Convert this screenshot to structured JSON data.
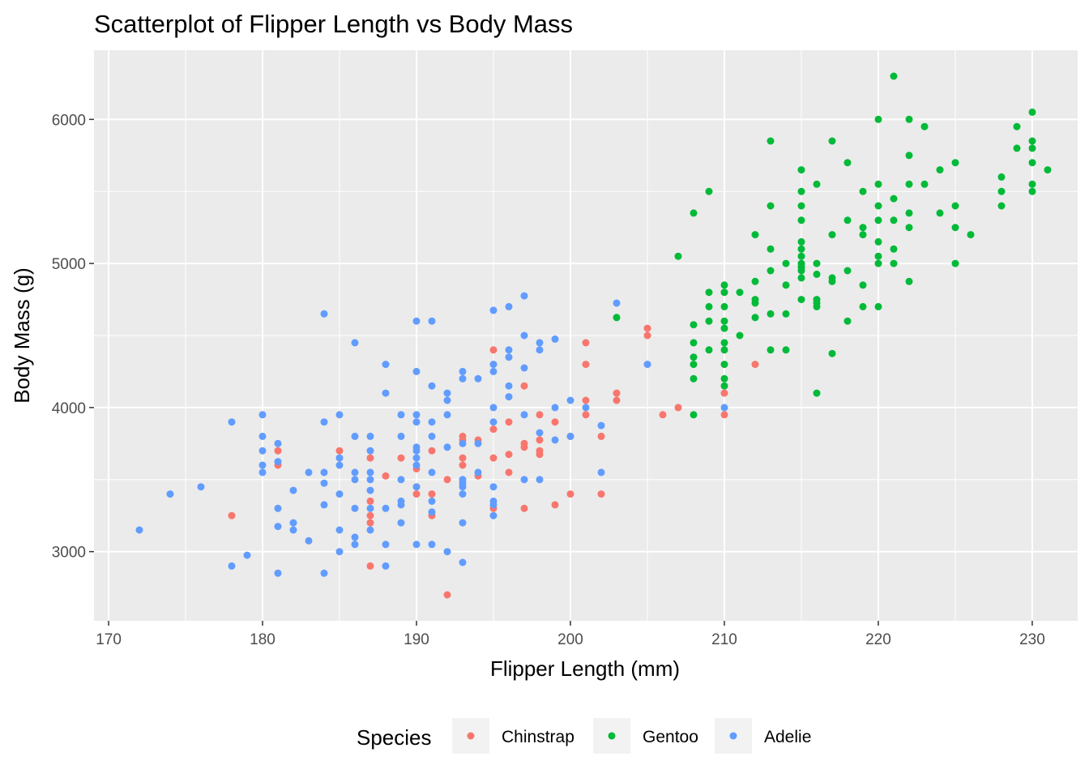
{
  "chart_data": {
    "type": "scatter",
    "title": "Scatterplot of Flipper Length vs Body Mass",
    "xlabel": "Flipper Length (mm)",
    "ylabel": "Body Mass (g)",
    "xlim": [
      169.05,
      232.95
    ],
    "ylim": [
      2520,
      6480
    ],
    "x_ticks": [
      170,
      180,
      190,
      200,
      210,
      220,
      230
    ],
    "y_ticks": [
      3000,
      4000,
      5000,
      6000
    ],
    "x_tick_labels": [
      "170",
      "180",
      "190",
      "200",
      "210",
      "220",
      "230"
    ],
    "y_tick_labels": [
      "3000",
      "4000",
      "5000",
      "6000"
    ],
    "grid": true,
    "legend_position": "bottom",
    "legend_title": "Species",
    "series": [
      {
        "name": "Chinstrap",
        "color": "#F8766D",
        "points": [
          [
            178,
            3250
          ],
          [
            181,
            3700
          ],
          [
            181,
            3600
          ],
          [
            185,
            3700
          ],
          [
            187,
            3650
          ],
          [
            187,
            3350
          ],
          [
            187,
            3250
          ],
          [
            187,
            3200
          ],
          [
            187,
            2900
          ],
          [
            188,
            3525
          ],
          [
            189,
            3650
          ],
          [
            190,
            3575
          ],
          [
            190,
            3450
          ],
          [
            190,
            3400
          ],
          [
            191,
            3700
          ],
          [
            191,
            3400
          ],
          [
            191,
            3250
          ],
          [
            192,
            3500
          ],
          [
            192,
            2700
          ],
          [
            193,
            3800
          ],
          [
            193,
            3775
          ],
          [
            193,
            3650
          ],
          [
            193,
            3600
          ],
          [
            194,
            3775
          ],
          [
            194,
            3525
          ],
          [
            195,
            4400
          ],
          [
            195,
            3850
          ],
          [
            195,
            3650
          ],
          [
            195,
            3300
          ],
          [
            196,
            3900
          ],
          [
            196,
            3675
          ],
          [
            196,
            3550
          ],
          [
            197,
            4150
          ],
          [
            197,
            3750
          ],
          [
            197,
            3725
          ],
          [
            197,
            3300
          ],
          [
            198,
            3950
          ],
          [
            198,
            3775
          ],
          [
            198,
            3700
          ],
          [
            198,
            3675
          ],
          [
            199,
            3900
          ],
          [
            199,
            3325
          ],
          [
            200,
            3800
          ],
          [
            200,
            3400
          ],
          [
            201,
            4450
          ],
          [
            201,
            4300
          ],
          [
            201,
            4050
          ],
          [
            201,
            3950
          ],
          [
            202,
            3800
          ],
          [
            202,
            3400
          ],
          [
            203,
            4100
          ],
          [
            203,
            4050
          ],
          [
            205,
            4550
          ],
          [
            205,
            4500
          ],
          [
            206,
            3950
          ],
          [
            207,
            4000
          ],
          [
            210,
            4800
          ],
          [
            210,
            4100
          ],
          [
            210,
            3950
          ],
          [
            212,
            4300
          ]
        ]
      },
      {
        "name": "Gentoo",
        "color": "#00BA38",
        "points": [
          [
            203,
            4625
          ],
          [
            207,
            5050
          ],
          [
            208,
            5350
          ],
          [
            208,
            4575
          ],
          [
            208,
            4450
          ],
          [
            208,
            4350
          ],
          [
            208,
            4300
          ],
          [
            208,
            4200
          ],
          [
            208,
            3950
          ],
          [
            209,
            5500
          ],
          [
            209,
            4800
          ],
          [
            209,
            4700
          ],
          [
            209,
            4600
          ],
          [
            209,
            4400
          ],
          [
            210,
            4850
          ],
          [
            210,
            4800
          ],
          [
            210,
            4700
          ],
          [
            210,
            4600
          ],
          [
            210,
            4550
          ],
          [
            210,
            4450
          ],
          [
            210,
            4400
          ],
          [
            210,
            4300
          ],
          [
            210,
            4200
          ],
          [
            210,
            4150
          ],
          [
            211,
            4800
          ],
          [
            211,
            4500
          ],
          [
            212,
            5200
          ],
          [
            212,
            4875
          ],
          [
            212,
            4750
          ],
          [
            212,
            4725
          ],
          [
            212,
            4625
          ],
          [
            213,
            5850
          ],
          [
            213,
            5400
          ],
          [
            213,
            5100
          ],
          [
            213,
            4950
          ],
          [
            213,
            4650
          ],
          [
            213,
            4400
          ],
          [
            214,
            5000
          ],
          [
            214,
            4850
          ],
          [
            214,
            4650
          ],
          [
            214,
            4400
          ],
          [
            215,
            5650
          ],
          [
            215,
            5500
          ],
          [
            215,
            5400
          ],
          [
            215,
            5300
          ],
          [
            215,
            5150
          ],
          [
            215,
            5100
          ],
          [
            215,
            5050
          ],
          [
            215,
            5000
          ],
          [
            215,
            4975
          ],
          [
            215,
            4950
          ],
          [
            215,
            4900
          ],
          [
            215,
            4750
          ],
          [
            216,
            5550
          ],
          [
            216,
            5000
          ],
          [
            216,
            4925
          ],
          [
            216,
            4750
          ],
          [
            216,
            4725
          ],
          [
            216,
            4700
          ],
          [
            216,
            4100
          ],
          [
            217,
            5850
          ],
          [
            217,
            5200
          ],
          [
            217,
            4900
          ],
          [
            217,
            4875
          ],
          [
            217,
            4375
          ],
          [
            218,
            5700
          ],
          [
            218,
            5300
          ],
          [
            218,
            4950
          ],
          [
            218,
            4600
          ],
          [
            219,
            5500
          ],
          [
            219,
            5250
          ],
          [
            219,
            5200
          ],
          [
            219,
            4850
          ],
          [
            219,
            4700
          ],
          [
            220,
            6000
          ],
          [
            220,
            5550
          ],
          [
            220,
            5400
          ],
          [
            220,
            5300
          ],
          [
            220,
            5150
          ],
          [
            220,
            5050
          ],
          [
            220,
            5000
          ],
          [
            220,
            4700
          ],
          [
            221,
            6300
          ],
          [
            221,
            5450
          ],
          [
            221,
            5300
          ],
          [
            221,
            5100
          ],
          [
            221,
            5000
          ],
          [
            222,
            6000
          ],
          [
            222,
            5750
          ],
          [
            222,
            5550
          ],
          [
            222,
            5350
          ],
          [
            222,
            5250
          ],
          [
            222,
            4875
          ],
          [
            223,
            5950
          ],
          [
            223,
            5550
          ],
          [
            224,
            5650
          ],
          [
            224,
            5350
          ],
          [
            225,
            5700
          ],
          [
            225,
            5400
          ],
          [
            225,
            5250
          ],
          [
            225,
            5000
          ],
          [
            226,
            5200
          ],
          [
            228,
            5600
          ],
          [
            228,
            5500
          ],
          [
            228,
            5400
          ],
          [
            229,
            5950
          ],
          [
            229,
            5800
          ],
          [
            230,
            6050
          ],
          [
            230,
            5850
          ],
          [
            230,
            5800
          ],
          [
            230,
            5700
          ],
          [
            230,
            5550
          ],
          [
            230,
            5500
          ],
          [
            231,
            5650
          ]
        ]
      },
      {
        "name": "Adelie",
        "color": "#619CFF",
        "points": [
          [
            172,
            3150
          ],
          [
            174,
            3400
          ],
          [
            176,
            3450
          ],
          [
            178,
            3900
          ],
          [
            178,
            2900
          ],
          [
            179,
            2975
          ],
          [
            180,
            3950
          ],
          [
            180,
            3800
          ],
          [
            180,
            3700
          ],
          [
            180,
            3600
          ],
          [
            180,
            3550
          ],
          [
            181,
            3750
          ],
          [
            181,
            3625
          ],
          [
            181,
            3300
          ],
          [
            181,
            3175
          ],
          [
            181,
            2850
          ],
          [
            182,
            3425
          ],
          [
            182,
            3200
          ],
          [
            182,
            3150
          ],
          [
            183,
            3550
          ],
          [
            183,
            3075
          ],
          [
            184,
            4650
          ],
          [
            184,
            3900
          ],
          [
            184,
            3550
          ],
          [
            184,
            3475
          ],
          [
            184,
            3325
          ],
          [
            184,
            2850
          ],
          [
            185,
            3950
          ],
          [
            185,
            3650
          ],
          [
            185,
            3600
          ],
          [
            185,
            3400
          ],
          [
            185,
            3150
          ],
          [
            185,
            3000
          ],
          [
            186,
            4450
          ],
          [
            186,
            3800
          ],
          [
            186,
            3550
          ],
          [
            186,
            3500
          ],
          [
            186,
            3300
          ],
          [
            186,
            3100
          ],
          [
            186,
            3050
          ],
          [
            187,
            3800
          ],
          [
            187,
            3700
          ],
          [
            187,
            3550
          ],
          [
            187,
            3500
          ],
          [
            187,
            3425
          ],
          [
            187,
            3300
          ],
          [
            187,
            3150
          ],
          [
            188,
            4300
          ],
          [
            188,
            4100
          ],
          [
            188,
            3300
          ],
          [
            188,
            3050
          ],
          [
            188,
            2900
          ],
          [
            189,
            3950
          ],
          [
            189,
            3800
          ],
          [
            189,
            3500
          ],
          [
            189,
            3350
          ],
          [
            189,
            3325
          ],
          [
            189,
            3200
          ],
          [
            190,
            4600
          ],
          [
            190,
            4250
          ],
          [
            190,
            3950
          ],
          [
            190,
            3900
          ],
          [
            190,
            3725
          ],
          [
            190,
            3700
          ],
          [
            190,
            3650
          ],
          [
            190,
            3600
          ],
          [
            190,
            3450
          ],
          [
            190,
            3050
          ],
          [
            191,
            4600
          ],
          [
            191,
            4150
          ],
          [
            191,
            3900
          ],
          [
            191,
            3800
          ],
          [
            191,
            3550
          ],
          [
            191,
            3350
          ],
          [
            191,
            3275
          ],
          [
            191,
            3050
          ],
          [
            192,
            4100
          ],
          [
            192,
            4050
          ],
          [
            192,
            3950
          ],
          [
            192,
            3725
          ],
          [
            192,
            3000
          ],
          [
            193,
            4250
          ],
          [
            193,
            4200
          ],
          [
            193,
            3750
          ],
          [
            193,
            3500
          ],
          [
            193,
            3475
          ],
          [
            193,
            3450
          ],
          [
            193,
            3400
          ],
          [
            193,
            3200
          ],
          [
            193,
            2925
          ],
          [
            194,
            4200
          ],
          [
            194,
            3750
          ],
          [
            194,
            3550
          ],
          [
            195,
            4675
          ],
          [
            195,
            4300
          ],
          [
            195,
            4250
          ],
          [
            195,
            4000
          ],
          [
            195,
            3900
          ],
          [
            195,
            3450
          ],
          [
            195,
            3350
          ],
          [
            195,
            3325
          ],
          [
            195,
            3250
          ],
          [
            196,
            4700
          ],
          [
            196,
            4400
          ],
          [
            196,
            4350
          ],
          [
            196,
            4150
          ],
          [
            196,
            4075
          ],
          [
            197,
            4775
          ],
          [
            197,
            4500
          ],
          [
            197,
            4275
          ],
          [
            197,
            3950
          ],
          [
            197,
            3500
          ],
          [
            198,
            4450
          ],
          [
            198,
            4400
          ],
          [
            198,
            3825
          ],
          [
            198,
            3500
          ],
          [
            199,
            4475
          ],
          [
            199,
            4000
          ],
          [
            199,
            3775
          ],
          [
            200,
            4050
          ],
          [
            200,
            3800
          ],
          [
            201,
            4000
          ],
          [
            202,
            3875
          ],
          [
            202,
            3550
          ],
          [
            203,
            4725
          ],
          [
            205,
            4300
          ],
          [
            210,
            4000
          ]
        ]
      }
    ]
  }
}
